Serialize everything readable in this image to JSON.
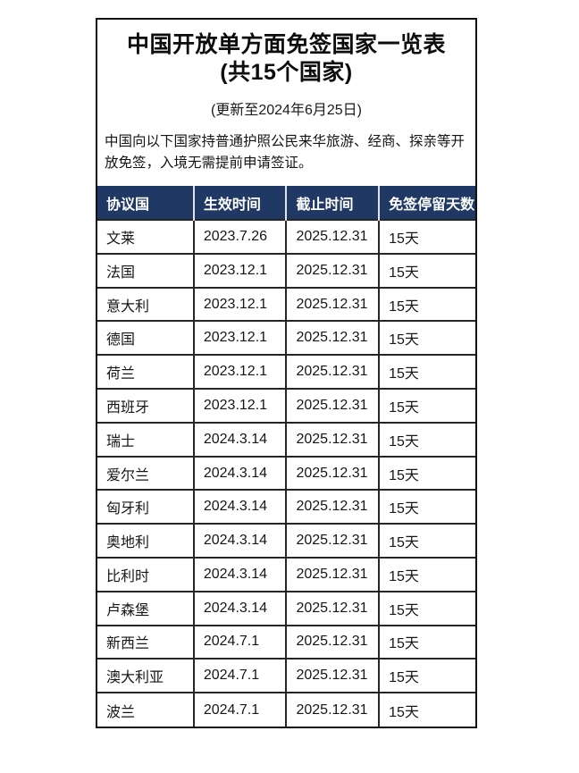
{
  "card": {
    "title_line1": "中国开放单方面免签国家一览表",
    "title_line2": "(共15个国家)",
    "subtitle": "(更新至2024年6月25日)",
    "description": "中国向以下国家持普通护照公民来华旅游、经商、探亲等开放免签，入境无需提前申请签证。"
  },
  "colors": {
    "header_bg": "#1f3864",
    "header_text": "#ffffff",
    "grid_border": "#262626",
    "outer_border": "#111111",
    "page_bg": "#ffffff"
  },
  "table": {
    "headers": [
      "协议国",
      "生效时间",
      "截止时间",
      "免签停留天数"
    ],
    "rows": [
      [
        "文莱",
        "2023.7.26",
        "2025.12.31",
        "15天"
      ],
      [
        "法国",
        "2023.12.1",
        "2025.12.31",
        "15天"
      ],
      [
        "意大利",
        "2023.12.1",
        "2025.12.31",
        "15天"
      ],
      [
        "德国",
        "2023.12.1",
        "2025.12.31",
        "15天"
      ],
      [
        "荷兰",
        "2023.12.1",
        "2025.12.31",
        "15天"
      ],
      [
        "西班牙",
        "2023.12.1",
        "2025.12.31",
        "15天"
      ],
      [
        "瑞士",
        "2024.3.14",
        "2025.12.31",
        "15天"
      ],
      [
        "爱尔兰",
        "2024.3.14",
        "2025.12.31",
        "15天"
      ],
      [
        "匈牙利",
        "2024.3.14",
        "2025.12.31",
        "15天"
      ],
      [
        "奥地利",
        "2024.3.14",
        "2025.12.31",
        "15天"
      ],
      [
        "比利时",
        "2024.3.14",
        "2025.12.31",
        "15天"
      ],
      [
        "卢森堡",
        "2024.3.14",
        "2025.12.31",
        "15天"
      ],
      [
        "新西兰",
        "2024.7.1",
        "2025.12.31",
        "15天"
      ],
      [
        "澳大利亚",
        "2024.7.1",
        "2025.12.31",
        "15天"
      ],
      [
        "波兰",
        "2024.7.1",
        "2025.12.31",
        "15天"
      ]
    ]
  }
}
